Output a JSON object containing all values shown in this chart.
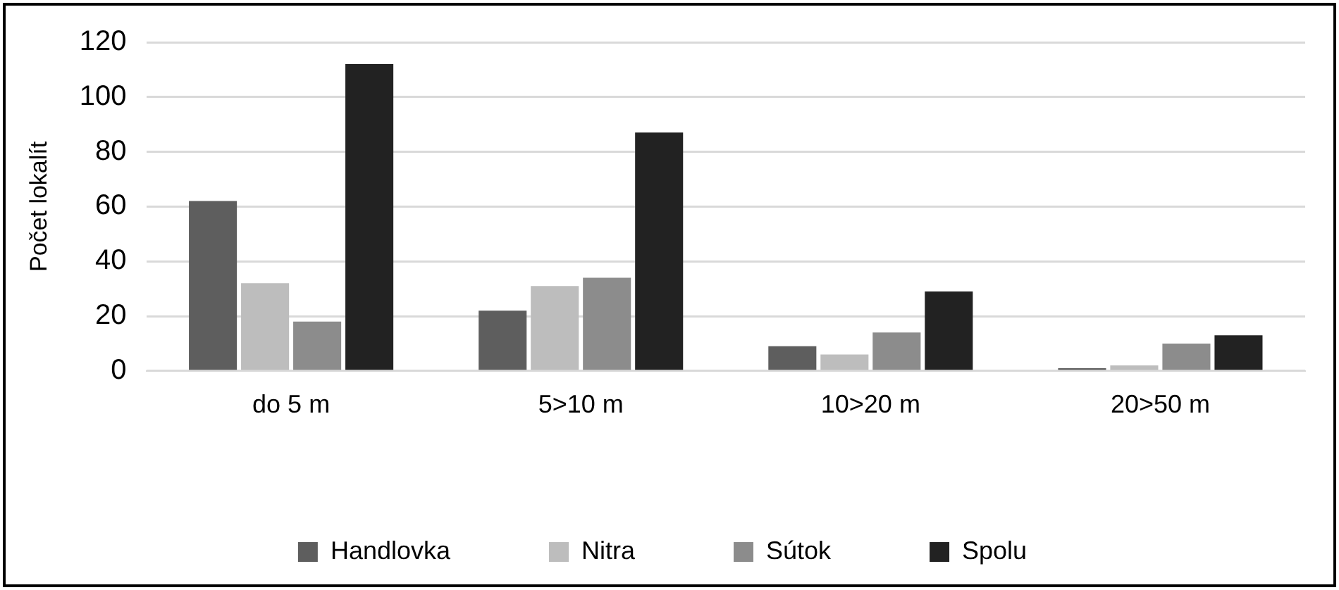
{
  "chart_data": {
    "type": "bar",
    "ylabel": "Počet lokalít",
    "categories": [
      "do 5 m",
      "5>10 m",
      "10>20 m",
      "20>50 m"
    ],
    "series": [
      {
        "name": "Handlovka",
        "color": "#5e5e5e",
        "values": [
          62,
          22,
          9,
          1
        ]
      },
      {
        "name": "Nitra",
        "color": "#bdbdbd",
        "values": [
          32,
          31,
          6,
          2
        ]
      },
      {
        "name": "Sútok",
        "color": "#8c8c8c",
        "values": [
          18,
          34,
          14,
          10
        ]
      },
      {
        "name": "Spolu",
        "color": "#222222",
        "values": [
          112,
          87,
          29,
          13
        ]
      }
    ],
    "ylim": [
      0,
      120
    ],
    "yticks": [
      0,
      20,
      40,
      60,
      80,
      100,
      120
    ],
    "grid": "y",
    "legend": "bottom"
  }
}
